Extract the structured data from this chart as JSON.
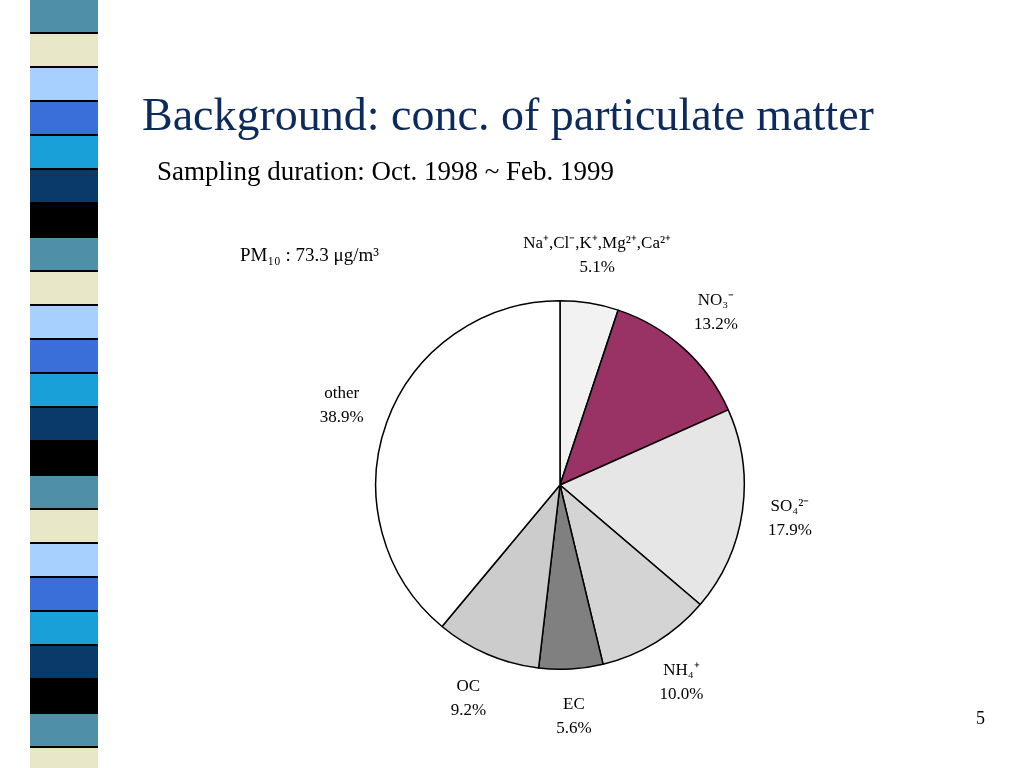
{
  "chart_data": {
    "type": "pie",
    "title": "Background: conc. of particulate matter",
    "subtitle": "Sampling duration: Oct. 1998 ~ Feb. 1999",
    "categories": [
      "Na⁺,Cl⁻,K⁺,Mg²⁺,Ca²⁺",
      "NO₃⁻",
      "SO₄²⁻",
      "NH₄⁺",
      "EC",
      "OC",
      "other"
    ],
    "values": [
      5.1,
      13.2,
      17.9,
      10.0,
      5.6,
      9.2,
      38.9
    ],
    "value_labels": [
      "5.1%",
      "13.2%",
      "17.9%",
      "10.0%",
      "5.6%",
      "9.2%",
      "38.9%"
    ],
    "colors": [
      "#f2f2f2",
      "#993366",
      "#e6e6e6",
      "#d4d4d4",
      "#808080",
      "#cccccc",
      "#ffffff"
    ],
    "annotations": [
      "PM₁₀ : 73.3 μg/m³",
      "5"
    ]
  }
}
